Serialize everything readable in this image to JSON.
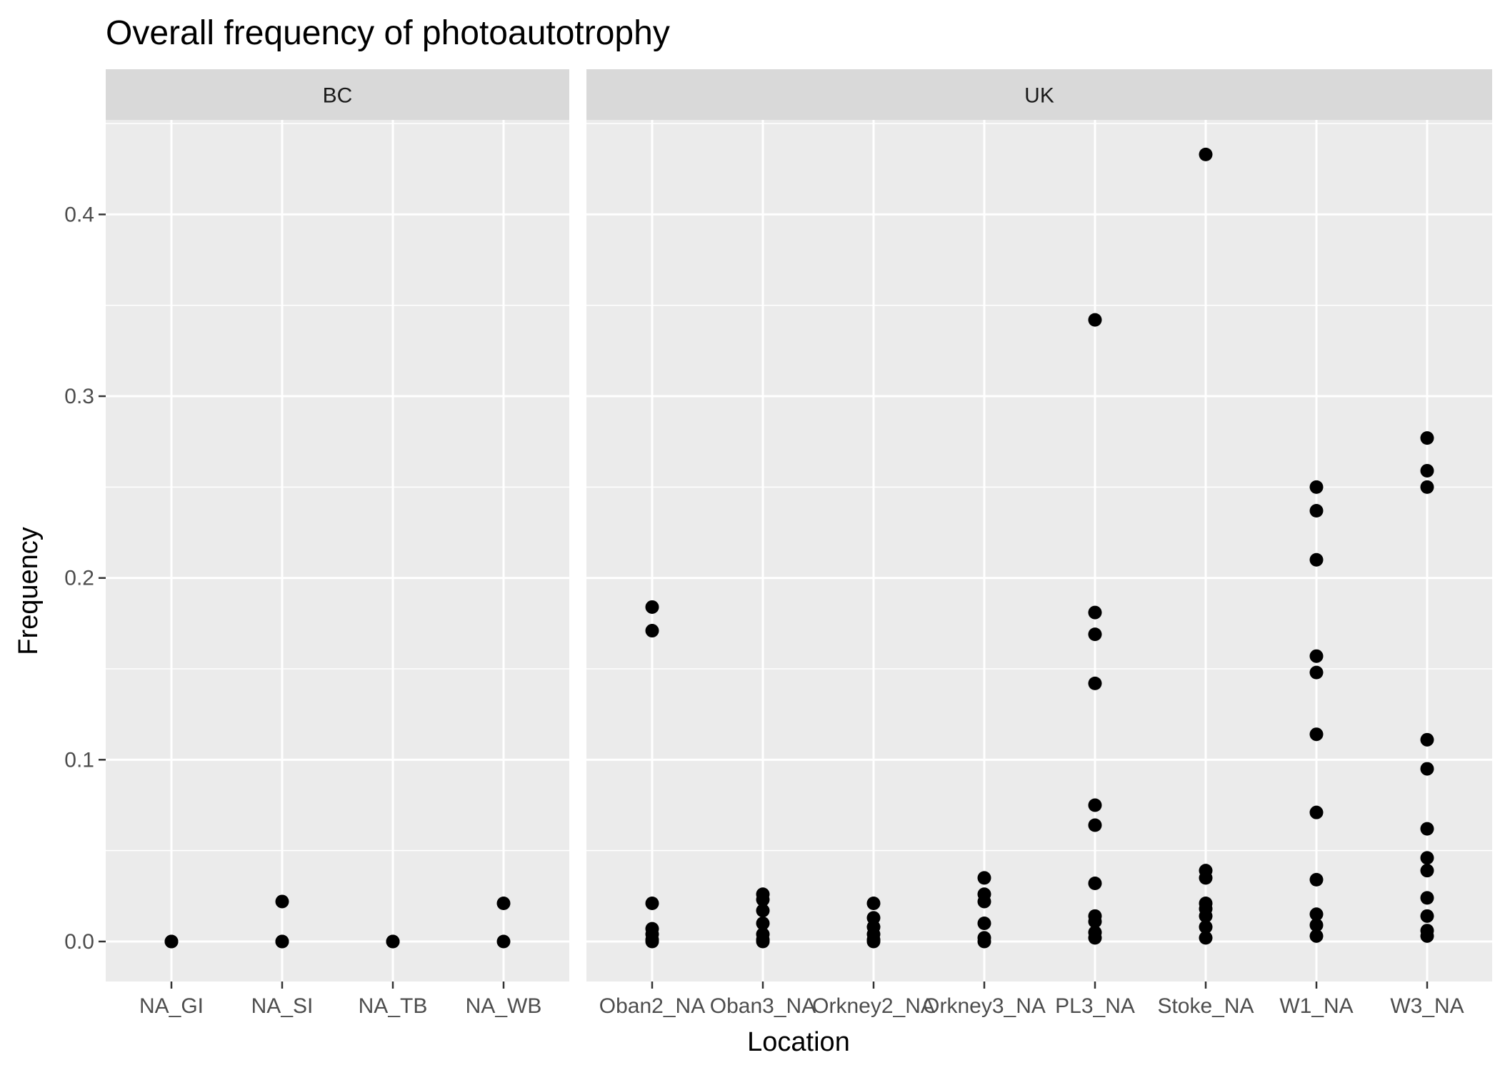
{
  "chart_data": {
    "type": "scatter",
    "title": "Overall frequency of photoautotrophy",
    "xlabel": "Location",
    "ylabel": "Frequency",
    "ylim": [
      -0.022,
      0.452
    ],
    "yticks": [
      0.0,
      0.1,
      0.2,
      0.3,
      0.4
    ],
    "ytick_labels": [
      "0.0",
      "0.1",
      "0.2",
      "0.3",
      "0.4"
    ],
    "grid": true,
    "point_color": "#000000",
    "panel_background": "#ebebeb",
    "strip_background": "#d9d9d9",
    "facets": [
      {
        "name": "BC",
        "categories": [
          "NA_GI",
          "NA_SI",
          "NA_TB",
          "NA_WB"
        ],
        "points": {
          "NA_GI": [
            0.0,
            0.0
          ],
          "NA_SI": [
            0.022,
            0.0,
            0.0
          ],
          "NA_TB": [
            0.0,
            0.0
          ],
          "NA_WB": [
            0.021,
            0.0
          ]
        }
      },
      {
        "name": "UK",
        "categories": [
          "Oban2_NA",
          "Oban3_NA",
          "Orkney2_NA",
          "Orkney3_NA",
          "PL3_NA",
          "Stoke_NA",
          "W1_NA",
          "W3_NA"
        ],
        "points": {
          "Oban2_NA": [
            0.184,
            0.171,
            0.021,
            0.007,
            0.004,
            0.001,
            0.0
          ],
          "Oban3_NA": [
            0.026,
            0.023,
            0.017,
            0.01,
            0.004,
            0.001,
            0.0
          ],
          "Orkney2_NA": [
            0.021,
            0.013,
            0.008,
            0.004,
            0.001,
            0.0
          ],
          "Orkney3_NA": [
            0.035,
            0.026,
            0.022,
            0.01,
            0.002,
            0.0
          ],
          "PL3_NA": [
            0.342,
            0.181,
            0.169,
            0.142,
            0.075,
            0.064,
            0.032,
            0.014,
            0.011,
            0.005,
            0.002
          ],
          "Stoke_NA": [
            0.433,
            0.039,
            0.035,
            0.021,
            0.018,
            0.014,
            0.008,
            0.002
          ],
          "W1_NA": [
            0.25,
            0.237,
            0.21,
            0.157,
            0.148,
            0.114,
            0.071,
            0.034,
            0.015,
            0.009,
            0.003
          ],
          "W3_NA": [
            0.277,
            0.259,
            0.25,
            0.111,
            0.095,
            0.062,
            0.046,
            0.039,
            0.024,
            0.014,
            0.006,
            0.003
          ]
        }
      }
    ]
  }
}
